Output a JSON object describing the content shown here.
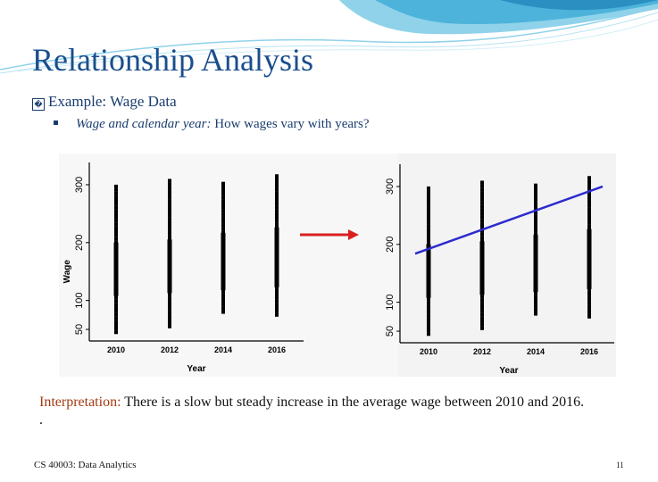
{
  "slide": {
    "title": "Relationship Analysis",
    "bullet_marker": "�",
    "bullet_text": "Example: Wage Data",
    "sub_bullet_italic": "Wage and calendar year:",
    "sub_bullet_text": " How wages vary with years?",
    "interpretation_lead": "Interpretation:",
    "interpretation_text": " There is a slow but steady increase in the average wage between 2010 and 2016.",
    "interpretation_trail": ".",
    "footer_left": "CS 40003: Data Analytics",
    "footer_right": "11"
  },
  "colors": {
    "title": "#1a4e8c",
    "lead": "#a33a12",
    "arrow": "#d92020",
    "regression_line": "#2b2bcf",
    "points": "#000000"
  },
  "chart_data": [
    {
      "type": "scatter",
      "title": "",
      "xlabel": "Year",
      "ylabel": "Wage",
      "x_ticks": [
        "2010",
        "2012",
        "2014",
        "2016"
      ],
      "y_ticks": [
        "50",
        "100",
        "200",
        "300"
      ],
      "ylim": [
        30,
        320
      ],
      "series": [
        {
          "x": 2010,
          "y_min": 45,
          "y_max": 300,
          "dense_min": 110,
          "dense_max": 200
        },
        {
          "x": 2012,
          "y_min": 55,
          "y_max": 310,
          "dense_min": 115,
          "dense_max": 205
        },
        {
          "x": 2014,
          "y_min": 80,
          "y_max": 305,
          "dense_min": 120,
          "dense_max": 215
        },
        {
          "x": 2016,
          "y_min": 75,
          "y_max": 320,
          "dense_min": 125,
          "dense_max": 225
        }
      ]
    },
    {
      "type": "scatter",
      "title": "",
      "xlabel": "Year",
      "ylabel": "",
      "x_ticks": [
        "2010",
        "2012",
        "2014",
        "2016"
      ],
      "y_ticks": [
        "50",
        "100",
        "200",
        "300"
      ],
      "ylim": [
        30,
        320
      ],
      "series": [
        {
          "x": 2010,
          "y_min": 45,
          "y_max": 300,
          "dense_min": 110,
          "dense_max": 200
        },
        {
          "x": 2012,
          "y_min": 55,
          "y_max": 310,
          "dense_min": 115,
          "dense_max": 205
        },
        {
          "x": 2014,
          "y_min": 80,
          "y_max": 305,
          "dense_min": 120,
          "dense_max": 215
        },
        {
          "x": 2016,
          "y_min": 75,
          "y_max": 320,
          "dense_min": 125,
          "dense_max": 225
        }
      ],
      "regression_line": {
        "x": [
          2009.5,
          2016.5
        ],
        "y": [
          184,
          300
        ]
      }
    }
  ]
}
